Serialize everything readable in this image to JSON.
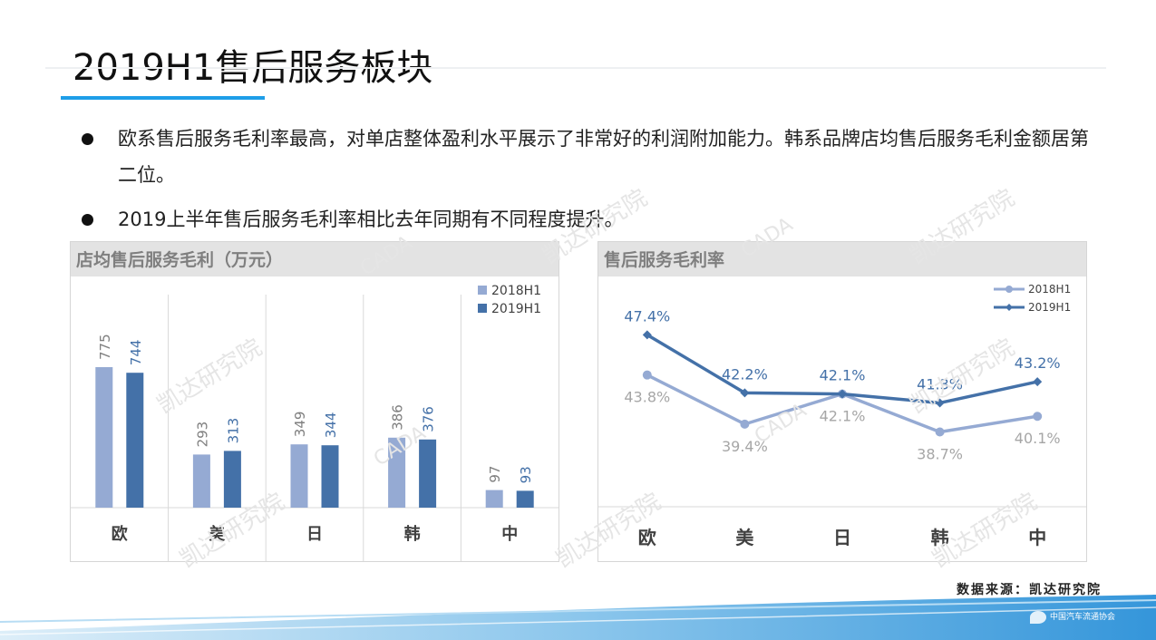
{
  "slide": {
    "title": "2019H1售后服务板块",
    "bullets": [
      "欧系售后服务毛利率最高，对单店整体盈利水平展示了非常好的利润附加能力。韩系品牌店均售后服务毛利金额居第二位。",
      "2019上半年售后服务毛利率相比去年同期有不同程度提升。"
    ],
    "source": "数据来源：凯达研究院",
    "footer_org": "中国汽车流通协会",
    "watermarks": [
      "凯达研究院",
      "CADA"
    ]
  },
  "colors": {
    "accent": "#1e9ee8",
    "series_2018": "#95aad3",
    "series_2019": "#4471a8",
    "header_bg": "#e3e3e3",
    "header_text": "#7f7f7f"
  },
  "chart_data": [
    {
      "type": "bar",
      "title": "店均售后服务毛利（万元）",
      "categories": [
        "欧",
        "美",
        "日",
        "韩",
        "中"
      ],
      "series": [
        {
          "name": "2018H1",
          "values": [
            775,
            293,
            349,
            386,
            97
          ]
        },
        {
          "name": "2019H1",
          "values": [
            744,
            313,
            344,
            376,
            93
          ]
        }
      ],
      "ylim": [
        0,
        1000
      ],
      "grid": false,
      "legend": "top-right",
      "category_separators": true
    },
    {
      "type": "line",
      "title": "售后服务毛利率",
      "categories": [
        "欧",
        "美",
        "日",
        "韩",
        "中"
      ],
      "series": [
        {
          "name": "2018H1",
          "values": [
            43.8,
            39.4,
            42.1,
            38.7,
            40.1
          ],
          "labels": [
            "43.8%",
            "39.4%",
            "42.1%",
            "38.7%",
            "40.1%"
          ]
        },
        {
          "name": "2019H1",
          "values": [
            47.4,
            42.2,
            42.1,
            41.3,
            43.2
          ],
          "labels": [
            "47.4%",
            "42.2%",
            "42.1%",
            "41.3%",
            "43.2%"
          ]
        }
      ],
      "ylim": [
        32,
        51
      ],
      "grid": false,
      "legend": "top-right"
    }
  ]
}
